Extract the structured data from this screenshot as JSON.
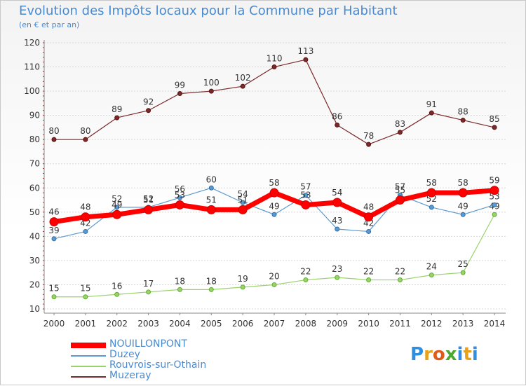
{
  "header": {
    "title": "Evolution des Impôts locaux pour la Commune par Habitant",
    "subtitle": "(en € et par an)"
  },
  "logo": {
    "letters": [
      "P",
      "r",
      "o",
      "x",
      "i",
      "t",
      "i"
    ],
    "colors": [
      "#2f8ee0",
      "#e8a21a",
      "#e05a1a",
      "#4aa830",
      "#2f8ee0",
      "#e8a21a",
      "#2f8ee0"
    ]
  },
  "chart_data": {
    "type": "line",
    "title": "Evolution des Impôts locaux pour la Commune par Habitant",
    "subtitle": "(en € et par an)",
    "xlabel": "",
    "ylabel": "",
    "categories": [
      "2000",
      "2001",
      "2002",
      "2003",
      "2004",
      "2005",
      "2006",
      "2007",
      "2008",
      "2009",
      "2010",
      "2011",
      "2012",
      "2013",
      "2014"
    ],
    "ylim": [
      10,
      120
    ],
    "yticks": [
      10,
      20,
      30,
      40,
      50,
      60,
      70,
      80,
      90,
      100,
      110,
      120
    ],
    "grid": "horizontal",
    "legend_position": "bottom-left",
    "series": [
      {
        "name": "NOUILLONPONT",
        "color": "#ff0000",
        "values": [
          46,
          48,
          49,
          51,
          53,
          51,
          51,
          58,
          53,
          54,
          48,
          55,
          58,
          58,
          59
        ]
      },
      {
        "name": "Duzey",
        "color": "#5a9ad0",
        "values": [
          39,
          42,
          52,
          52,
          56,
          60,
          54,
          49,
          57,
          43,
          42,
          57,
          52,
          49,
          53
        ]
      },
      {
        "name": "Rouvrois-sur-Othain",
        "color": "#9ad26a",
        "values": [
          15,
          15,
          16,
          17,
          18,
          18,
          19,
          20,
          22,
          23,
          22,
          22,
          24,
          25,
          49
        ]
      },
      {
        "name": "Muzeray",
        "color": "#7a2a2a",
        "values": [
          80,
          80,
          89,
          92,
          99,
          100,
          102,
          110,
          113,
          86,
          78,
          83,
          91,
          88,
          85
        ]
      }
    ]
  }
}
